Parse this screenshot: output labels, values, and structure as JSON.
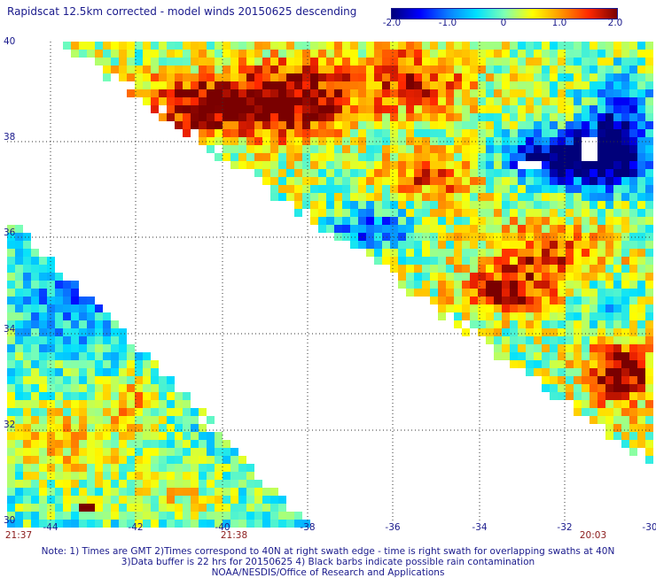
{
  "title": "Rapidscat 12.5km corrected - model winds 20150625 descending",
  "colorbar": {
    "ticks": [
      "-2.0",
      "-1.0",
      "0",
      "1.0",
      "2.0"
    ],
    "colors": [
      "#00007a",
      "#0000ff",
      "#0a7dff",
      "#00e0ff",
      "#7dffb4",
      "#ffff00",
      "#ff9600",
      "#ff2800",
      "#7a0000"
    ],
    "min": -2.0,
    "max": 2.0
  },
  "lat_labels": [
    "40",
    "38",
    "36",
    "34",
    "32",
    "30"
  ],
  "lon_labels": [
    "-44",
    "-42",
    "-40",
    "-38",
    "-36",
    "-34",
    "-32",
    "-30"
  ],
  "time_labels": {
    "left": "21:37",
    "middle": "21:38",
    "right": "20:03"
  },
  "note": {
    "line1": "Note: 1) Times are GMT 2)Times correspond to 40N at right swath edge - time is right swath for overlapping swaths at 40N",
    "line2": "3)Data buffer is 22 hrs for 20150625 4) Black barbs indicate possible rain contamination",
    "line3": "NOAA/NESDIS/Office of Research and Applications"
  }
}
